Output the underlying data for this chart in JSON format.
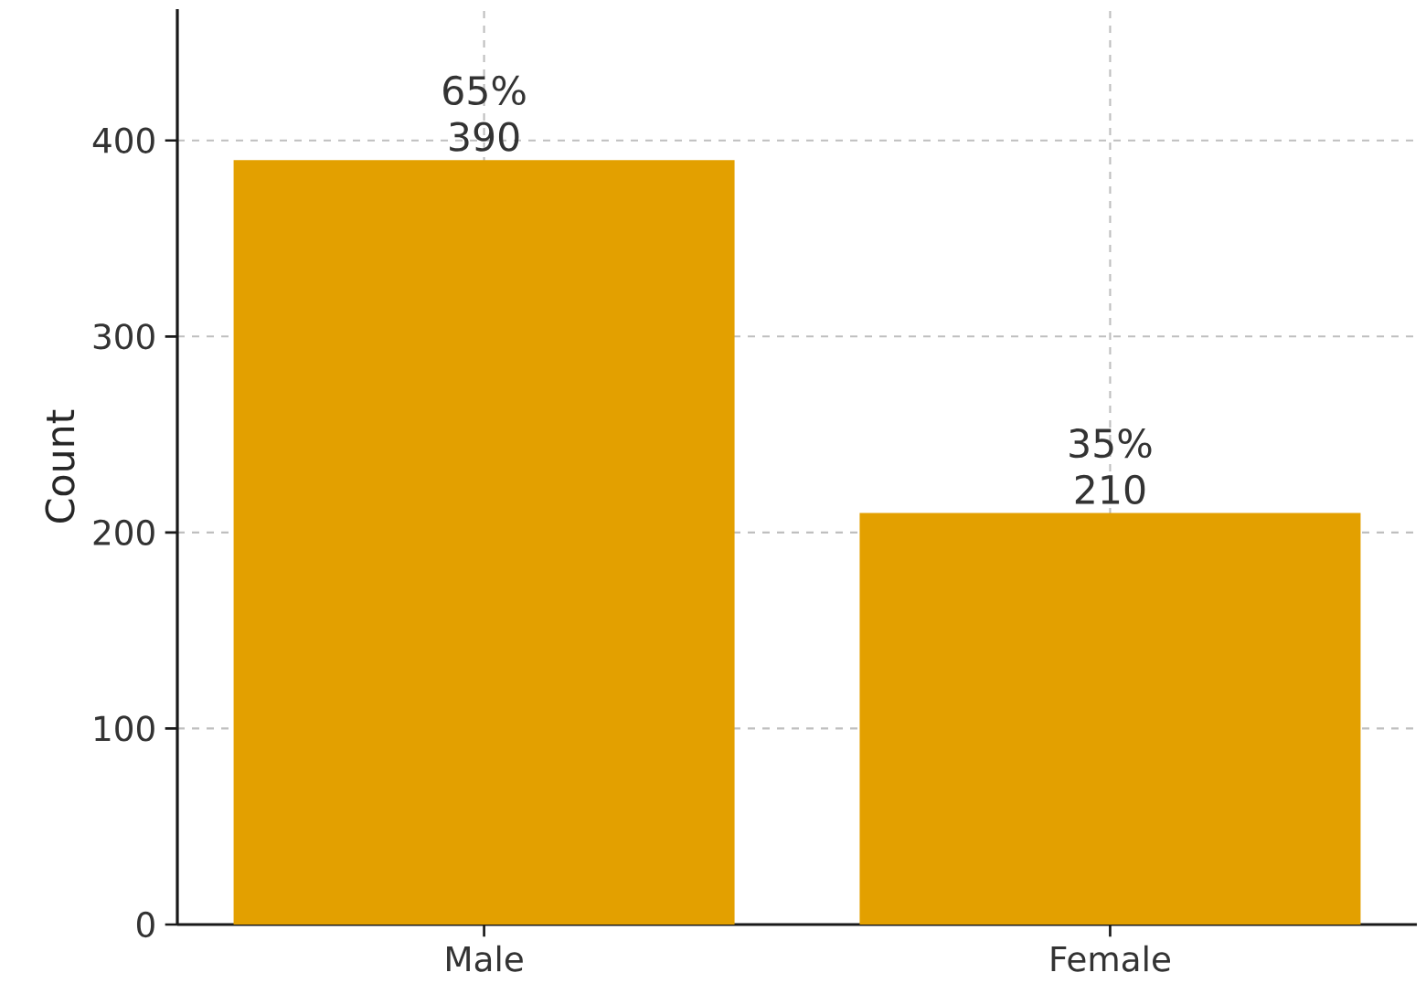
{
  "chart_data": {
    "type": "bar",
    "ylabel": "Count",
    "categories": [
      "Male",
      "Female"
    ],
    "values": [
      390,
      210
    ],
    "color": "#e3a000",
    "value_labels": [
      "65% 390",
      "35% 210"
    ],
    "ylim": [
      0,
      467
    ],
    "yticks": [
      0,
      100,
      200,
      300,
      400
    ],
    "grid": true
  }
}
